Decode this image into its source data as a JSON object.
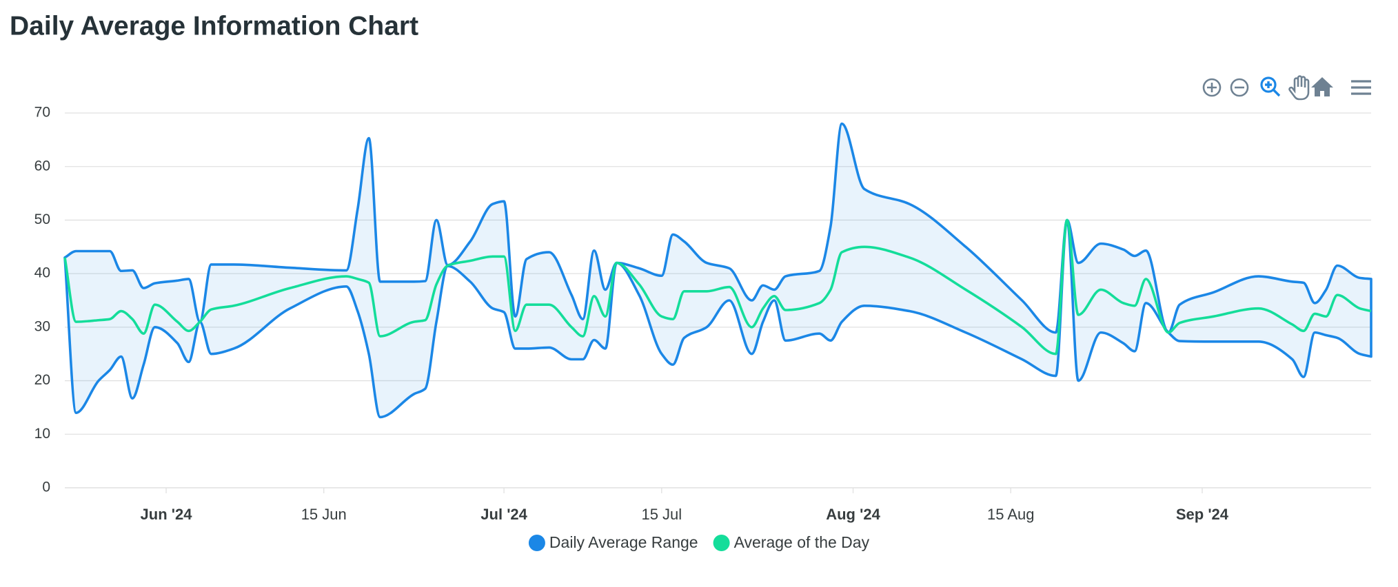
{
  "chart_data": {
    "type": "rangeArea",
    "title": "Daily Average Information Chart",
    "x": [
      "2024-05-23",
      "2024-05-24",
      "2024-05-26",
      "2024-05-27",
      "2024-05-28",
      "2024-05-29",
      "2024-05-30",
      "2024-05-31",
      "2024-06-02",
      "2024-06-03",
      "2024-06-04",
      "2024-06-05",
      "2024-06-07",
      "2024-06-12",
      "2024-06-17",
      "2024-06-18",
      "2024-06-19",
      "2024-06-20",
      "2024-06-23",
      "2024-06-24",
      "2024-06-25",
      "2024-06-26",
      "2024-06-28",
      "2024-06-30",
      "2024-07-01",
      "2024-07-02",
      "2024-07-03",
      "2024-07-05",
      "2024-07-07",
      "2024-07-08",
      "2024-07-09",
      "2024-07-10",
      "2024-07-11",
      "2024-07-13",
      "2024-07-15",
      "2024-07-16",
      "2024-07-17",
      "2024-07-19",
      "2024-07-21",
      "2024-07-23",
      "2024-07-24",
      "2024-07-25",
      "2024-07-26",
      "2024-07-29",
      "2024-07-30",
      "2024-07-31",
      "2024-08-02",
      "2024-08-06",
      "2024-08-11",
      "2024-08-16",
      "2024-08-19",
      "2024-08-20",
      "2024-08-21",
      "2024-08-23",
      "2024-08-25",
      "2024-08-26",
      "2024-08-27",
      "2024-08-29",
      "2024-08-30",
      "2024-09-02",
      "2024-09-06",
      "2024-09-09",
      "2024-09-10",
      "2024-09-11",
      "2024-09-12",
      "2024-09-13",
      "2024-09-15",
      "2024-09-16"
    ],
    "series": [
      {
        "name": "Daily Average Range",
        "color": "#1b87e6",
        "values": [
          [
            43,
            43
          ],
          [
            14,
            44.2
          ],
          [
            20,
            44.2
          ],
          [
            22,
            44.2
          ],
          [
            24.5,
            40.5
          ],
          [
            16.7,
            40.6
          ],
          [
            23,
            37.3
          ],
          [
            30,
            38.2
          ],
          [
            27,
            38.7
          ],
          [
            23.5,
            39
          ],
          [
            31,
            31
          ],
          [
            25,
            41.7
          ],
          [
            26,
            41.7
          ],
          [
            33.5,
            41.1
          ],
          [
            37.6,
            40.6
          ],
          [
            33,
            52
          ],
          [
            25,
            65.3
          ],
          [
            13.2,
            38.5
          ],
          [
            17.5,
            38.5
          ],
          [
            18.5,
            38.6
          ],
          [
            31,
            50
          ],
          [
            41.4,
            41.6
          ],
          [
            38.5,
            46
          ],
          [
            33.5,
            53
          ],
          [
            32.8,
            53.5
          ],
          [
            26,
            32
          ],
          [
            26,
            42.7
          ],
          [
            26.2,
            44
          ],
          [
            24,
            36
          ],
          [
            24,
            31.5
          ],
          [
            27.6,
            44.3
          ],
          [
            26,
            37
          ],
          [
            42,
            42
          ],
          [
            36,
            41
          ],
          [
            25,
            39.6
          ],
          [
            23,
            47.3
          ],
          [
            28,
            46
          ],
          [
            30,
            42
          ],
          [
            35,
            41
          ],
          [
            25,
            35
          ],
          [
            31,
            37.8
          ],
          [
            35,
            37
          ],
          [
            27.5,
            39.5
          ],
          [
            28.8,
            40.5
          ],
          [
            27.5,
            48.8
          ],
          [
            31,
            68
          ],
          [
            34,
            55.8
          ],
          [
            33,
            53
          ],
          [
            29,
            45
          ],
          [
            24,
            35
          ],
          [
            20.9,
            29
          ],
          [
            50,
            50
          ],
          [
            20,
            42
          ],
          [
            29,
            45.6
          ],
          [
            27,
            44.5
          ],
          [
            25.5,
            43.3
          ],
          [
            34.5,
            44.3
          ],
          [
            29,
            29
          ],
          [
            27.4,
            34.2
          ],
          [
            27.3,
            36.5
          ],
          [
            27.3,
            39.5
          ],
          [
            24,
            38.5
          ],
          [
            20.7,
            38.3
          ],
          [
            29,
            34.5
          ],
          [
            28.5,
            37
          ],
          [
            28,
            41.5
          ],
          [
            25,
            39.2
          ],
          [
            24.5,
            39
          ]
        ]
      },
      {
        "name": "Average of the Day",
        "color": "#14dd9a",
        "values": [
          43,
          31,
          31.3,
          31.5,
          33,
          31.5,
          28.8,
          34.2,
          31,
          29.3,
          31,
          33.3,
          34,
          37.3,
          39.5,
          39,
          38.3,
          28.3,
          31,
          31.3,
          38,
          41.5,
          42.4,
          43.2,
          43.2,
          29.3,
          34.2,
          34.2,
          30,
          28.3,
          35.8,
          32,
          42,
          38,
          32,
          31.5,
          36.7,
          36.7,
          37.5,
          30,
          33.5,
          35.8,
          33.2,
          34.5,
          37,
          44,
          45,
          43,
          37,
          30,
          25,
          50,
          32.3,
          37,
          34.5,
          34,
          39,
          29,
          30.8,
          32,
          33.5,
          30.5,
          29.3,
          32.5,
          32,
          36,
          33.5,
          33
        ]
      }
    ],
    "xlim": [
      "2024-05-23",
      "2024-09-16"
    ],
    "xticks": [
      {
        "value": "2024-06-01",
        "label": "Jun '24"
      },
      {
        "value": "2024-06-15",
        "label": "15 Jun"
      },
      {
        "value": "2024-07-01",
        "label": "Jul '24"
      },
      {
        "value": "2024-07-15",
        "label": "15 Jul"
      },
      {
        "value": "2024-08-01",
        "label": "Aug '24"
      },
      {
        "value": "2024-08-15",
        "label": "15 Aug"
      },
      {
        "value": "2024-09-01",
        "label": "Sep '24"
      }
    ],
    "ylim": [
      0,
      70
    ],
    "yticks": [
      0,
      10,
      20,
      30,
      40,
      50,
      60,
      70
    ],
    "grid": true
  }
}
